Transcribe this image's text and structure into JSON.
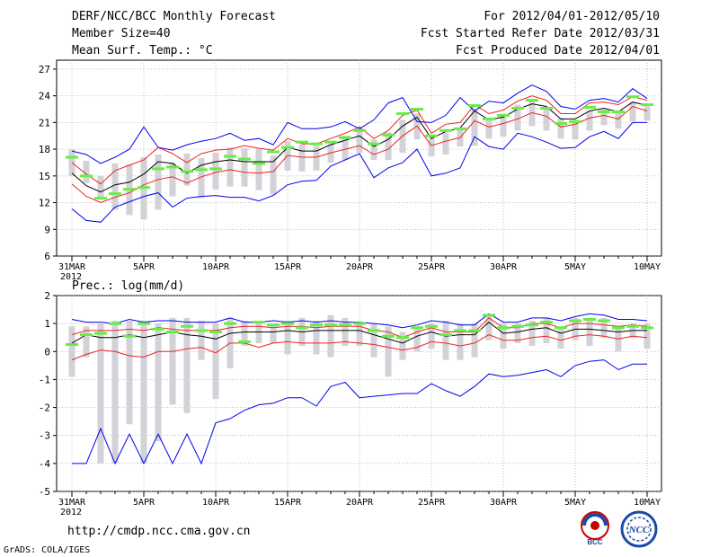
{
  "header": {
    "title": "DERF/NCC/BCC Monthly Forecast",
    "member": "Member Size=40",
    "variable": "Mean Surf. Temp.: °C",
    "period": "For 2012/04/01-2012/05/10",
    "start": "Fcst Started Refer Date 2012/03/31",
    "produced": "Fcst Produced Date 2012/04/01"
  },
  "footer": {
    "url": "http://cmdp.ncc.cma.gov.cn",
    "credit": "GrADS: COLA/IGES",
    "logo_left": "BCC",
    "logo_right": "NCC"
  },
  "colors": {
    "bar": "#d2d2d8",
    "median": "#66ee44",
    "mean": "#000000",
    "spread": "#ee2222",
    "range": "#0000ee"
  },
  "chart_data": [
    {
      "type": "line",
      "title": "Mean Surf. Temp.: °C",
      "x": [
        0,
        1,
        2,
        3,
        4,
        5,
        6,
        7,
        8,
        9,
        10,
        11,
        12,
        13,
        14,
        15,
        16,
        17,
        18,
        19,
        20,
        21,
        22,
        23,
        24,
        25,
        26,
        27,
        28,
        29,
        30,
        31,
        32,
        33,
        34,
        35,
        36,
        37,
        38,
        39,
        40
      ],
      "xtick_positions": [
        0,
        5,
        10,
        15,
        20,
        25,
        30,
        35,
        40
      ],
      "xtick_labels": [
        "31MAR",
        "5APR",
        "10APR",
        "15APR",
        "20APR",
        "25APR",
        "30APR",
        "5MAY",
        "10MAY"
      ],
      "xlabel_year": "2012",
      "ylim": [
        6,
        28
      ],
      "yticks": [
        6,
        9,
        12,
        15,
        18,
        21,
        24,
        27
      ],
      "series": [
        {
          "name": "max",
          "values": [
            11.3,
            10,
            9.8,
            11.5,
            12.1,
            12.7,
            13.1,
            11.5,
            12.5,
            12.7,
            12.8,
            12.6,
            12.6,
            12.2,
            12.8,
            14,
            14.4,
            14.5,
            16.1,
            16.8,
            17.5,
            14.8,
            15.9,
            16.5,
            18,
            15,
            15.3,
            15.9,
            19.4,
            18.3,
            18,
            19.8,
            19.4,
            18.8,
            18.1,
            18.2,
            19.4,
            20,
            19.2,
            21,
            21
          ]
        },
        {
          "name": "q_low",
          "values": [
            14.1,
            12.7,
            12,
            12.6,
            13.1,
            14,
            14.6,
            14.9,
            14.2,
            14.9,
            15.4,
            15.7,
            15.4,
            15.3,
            15.5,
            17.3,
            17.1,
            17.1,
            17.6,
            18,
            18.4,
            17.4,
            18,
            19.5,
            20.6,
            18.4,
            18.9,
            19.3,
            21.2,
            20.5,
            20.9,
            21.4,
            22.1,
            21.7,
            20.5,
            20.8,
            21.5,
            21.8,
            21.4,
            22.8,
            22.3
          ]
        },
        {
          "name": "mean",
          "values": [
            15.3,
            13.9,
            13.2,
            14,
            14.3,
            15.2,
            16.6,
            16.4,
            15.3,
            16.2,
            16.6,
            16.8,
            16.6,
            16.6,
            16.6,
            18.2,
            17.8,
            17.8,
            18.5,
            19,
            19.5,
            18.3,
            19.1,
            20.6,
            21.6,
            19.2,
            20,
            20.4,
            22.3,
            21.3,
            21.6,
            22.5,
            23.1,
            22.8,
            21.4,
            21.4,
            22.3,
            22.6,
            22.2,
            23.3,
            22.9
          ]
        },
        {
          "name": "q_high",
          "values": [
            16.5,
            15.2,
            14.1,
            15.6,
            16.2,
            16.8,
            18.2,
            17.5,
            16.5,
            17.5,
            17.9,
            18,
            18.4,
            18.1,
            17.9,
            19.2,
            18.6,
            18.6,
            19.2,
            19.8,
            20.5,
            19.2,
            20.1,
            21.8,
            22.4,
            19.8,
            20.8,
            21,
            23,
            22,
            22.4,
            23.4,
            24,
            23.5,
            22,
            22,
            23.2,
            23.3,
            23,
            23.9,
            23.5
          ]
        },
        {
          "name": "min",
          "values": [
            17.8,
            17.4,
            16.4,
            17.1,
            18,
            20.5,
            18.2,
            17.9,
            18.5,
            18.9,
            19.2,
            19.8,
            19,
            19.2,
            18.5,
            21,
            20.3,
            20.3,
            20.5,
            21.1,
            20.3,
            21.3,
            23.2,
            23.8,
            21.1,
            21,
            21.8,
            23.8,
            22.3,
            23.4,
            23.2,
            24.3,
            25.2,
            24.5,
            22.8,
            22.5,
            23.5,
            23.7,
            23.3,
            24.8,
            23.7
          ]
        }
      ],
      "bars": {
        "low": [
          15,
          14.2,
          12.3,
          11.2,
          10.6,
          10.1,
          11.2,
          12.7,
          13.9,
          12.5,
          13.5,
          13.8,
          13.8,
          13.4,
          12.9,
          15.6,
          15.5,
          15.6,
          16.5,
          16.8,
          17.6,
          16.8,
          16.8,
          17.6,
          19.1,
          17.2,
          17.4,
          18.3,
          18.4,
          19.2,
          19.4,
          20.1,
          20.6,
          20.1,
          19.2,
          19.1,
          20.1,
          20.7,
          20.3,
          21.1,
          21.2
        ],
        "high": [
          18,
          16.7,
          15,
          16.4,
          16.3,
          17.1,
          17.4,
          16.5,
          17.5,
          17,
          17.6,
          18.2,
          18.1,
          18,
          17.3,
          18.9,
          18.5,
          18.4,
          18.6,
          19.5,
          20.1,
          19.1,
          19.9,
          21.3,
          22,
          19.2,
          19.9,
          20.4,
          22.6,
          21.3,
          22,
          23,
          23.4,
          22.7,
          21.5,
          21.3,
          22.3,
          22.5,
          22.2,
          23.3,
          22.8
        ]
      },
      "median": [
        17.1,
        15,
        12.5,
        13,
        13.5,
        13.7,
        15.8,
        16,
        15.5,
        15.7,
        15.8,
        17.2,
        16.9,
        16.4,
        17.7,
        18.2,
        18.8,
        18.6,
        18.8,
        19.3,
        20.1,
        18.6,
        19.6,
        22,
        22.5,
        19.5,
        20.1,
        20.3,
        22.9,
        21.4,
        21.8,
        22.6,
        23.5,
        22.6,
        20.9,
        21.1,
        22.7,
        22.2,
        22.2,
        23.9,
        23
      ]
    },
    {
      "type": "line",
      "title": "Prec.: log(mm/d)",
      "x": [
        0,
        1,
        2,
        3,
        4,
        5,
        6,
        7,
        8,
        9,
        10,
        11,
        12,
        13,
        14,
        15,
        16,
        17,
        18,
        19,
        20,
        21,
        22,
        23,
        24,
        25,
        26,
        27,
        28,
        29,
        30,
        31,
        32,
        33,
        34,
        35,
        36,
        37,
        38,
        39,
        40
      ],
      "xtick_positions": [
        0,
        5,
        10,
        15,
        20,
        25,
        30,
        35,
        40
      ],
      "xtick_labels": [
        "31MAR",
        "5APR",
        "10APR",
        "15APR",
        "20APR",
        "25APR",
        "30APR",
        "5MAY",
        "10MAY"
      ],
      "xlabel_year": "2012",
      "ylim": [
        -5,
        2
      ],
      "yticks": [
        -5,
        -4,
        -3,
        -2,
        -1,
        0,
        1,
        2
      ],
      "series": [
        {
          "name": "min",
          "values": [
            -4,
            -4,
            -2.75,
            -4,
            -2.95,
            -4,
            -2.95,
            -4,
            -2.95,
            -4,
            -2.55,
            -2.4,
            -2.1,
            -1.9,
            -1.85,
            -1.65,
            -1.65,
            -1.95,
            -1.25,
            -1.1,
            -1.65,
            -1.6,
            -1.55,
            -1.5,
            -1.5,
            -1.15,
            -1.4,
            -1.6,
            -1.25,
            -0.8,
            -0.9,
            -0.85,
            -0.75,
            -0.65,
            -0.9,
            -0.5,
            -0.35,
            -0.3,
            -0.65,
            -0.45,
            -0.45
          ]
        },
        {
          "name": "q_low",
          "values": [
            -0.3,
            -0.1,
            0.05,
            0,
            -0.15,
            -0.2,
            0,
            0,
            0.1,
            0.15,
            -0.05,
            0.3,
            0.3,
            0.15,
            0.3,
            0.35,
            0.3,
            0.3,
            0.3,
            0.35,
            0.3,
            0.25,
            0.15,
            0.05,
            0.15,
            0.35,
            0.3,
            0.2,
            0.3,
            0.6,
            0.4,
            0.4,
            0.5,
            0.55,
            0.4,
            0.55,
            0.6,
            0.55,
            0.45,
            0.55,
            0.5
          ]
        },
        {
          "name": "mean",
          "values": [
            0.3,
            0.6,
            0.5,
            0.5,
            0.6,
            0.5,
            0.6,
            0.7,
            0.6,
            0.55,
            0.45,
            0.65,
            0.7,
            0.7,
            0.7,
            0.75,
            0.7,
            0.75,
            0.75,
            0.75,
            0.75,
            0.6,
            0.45,
            0.3,
            0.55,
            0.7,
            0.55,
            0.6,
            0.6,
            1.05,
            0.65,
            0.7,
            0.8,
            0.85,
            0.65,
            0.8,
            0.8,
            0.75,
            0.7,
            0.75,
            0.75
          ]
        },
        {
          "name": "q_high",
          "values": [
            0.6,
            0.75,
            0.75,
            0.75,
            0.8,
            0.75,
            0.85,
            0.8,
            0.75,
            0.75,
            0.75,
            0.85,
            0.9,
            0.9,
            0.85,
            0.9,
            0.9,
            0.85,
            0.9,
            0.9,
            0.9,
            0.75,
            0.7,
            0.5,
            0.7,
            0.85,
            0.7,
            0.7,
            0.7,
            1.2,
            0.85,
            0.85,
            1,
            1,
            0.85,
            1,
            1,
            0.95,
            0.9,
            0.95,
            0.9
          ]
        },
        {
          "name": "max",
          "values": [
            1.15,
            1.05,
            1.05,
            1,
            1.15,
            1.05,
            1.1,
            1.1,
            1.05,
            1.05,
            1.05,
            1.2,
            1.05,
            1.05,
            1.1,
            1.05,
            1.1,
            1.05,
            1.1,
            1.05,
            1.05,
            1,
            0.95,
            0.85,
            0.95,
            1.1,
            1.05,
            0.95,
            0.95,
            1.35,
            1.05,
            1.05,
            1.2,
            1.2,
            1.1,
            1.25,
            1.35,
            1.3,
            1.15,
            1.15,
            1.1
          ]
        }
      ],
      "bars": {
        "low": [
          -0.9,
          -0.2,
          -4,
          -4,
          -2.6,
          -4,
          -3.2,
          -1.9,
          -2.2,
          -0.3,
          -1.7,
          -0.6,
          0.2,
          0.3,
          0.3,
          -0.1,
          0.2,
          -0.1,
          -0.2,
          0.2,
          0.2,
          -0.2,
          -0.9,
          -0.3,
          0,
          0.1,
          -0.3,
          -0.3,
          -0.2,
          0.4,
          0.1,
          0.3,
          0.2,
          0.3,
          0.1,
          0.4,
          0.2,
          0.5,
          0,
          0.5,
          0.1
        ],
        "high": [
          0.9,
          0.9,
          1,
          1.1,
          1.1,
          1.1,
          1,
          1.2,
          1.2,
          1.1,
          1,
          1.2,
          1.1,
          1,
          1,
          1.1,
          1.2,
          1.1,
          1.3,
          1.2,
          1,
          1,
          0.9,
          0.7,
          0.9,
          1,
          1.1,
          1,
          1,
          1.3,
          1,
          1,
          1.1,
          1.2,
          0.9,
          1.2,
          1.2,
          1.2,
          0.9,
          1,
          1
        ]
      },
      "median": [
        0.25,
        0.6,
        0.65,
        1,
        0.55,
        1,
        0.8,
        0.7,
        0.9,
        0.75,
        0.7,
        1,
        0.35,
        1.05,
        0.95,
        1,
        0.85,
        0.95,
        0.95,
        0.95,
        1,
        0.75,
        0.55,
        0.5,
        0.85,
        0.9,
        0.6,
        0.75,
        0.75,
        1.3,
        0.85,
        0.9,
        0.95,
        1.05,
        0.85,
        1.1,
        1.15,
        1.1,
        0.85,
        0.9,
        0.85
      ]
    }
  ]
}
